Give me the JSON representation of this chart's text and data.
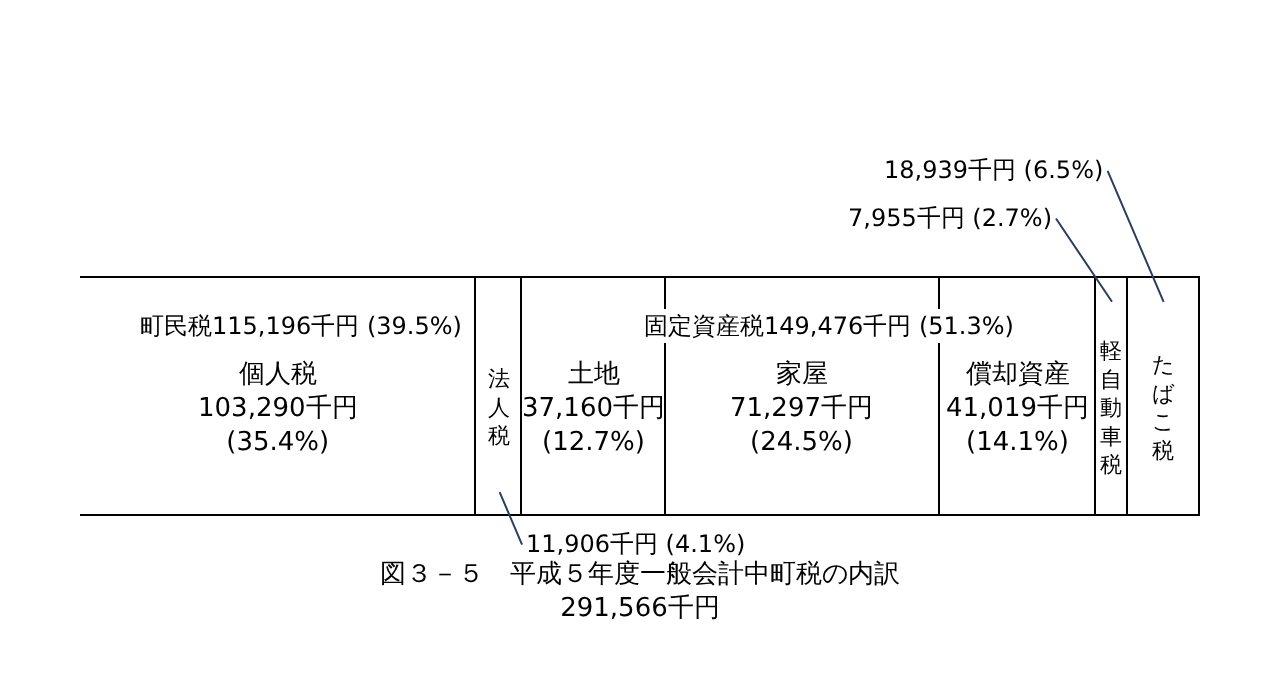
{
  "chart_data": {
    "type": "bar",
    "orientation": "horizontal",
    "stacked": true,
    "title": "図３－５　平成５年度一般会計中町税の内訳",
    "subtitle": "291,566千円",
    "categories": [
      null
    ],
    "series": [
      {
        "name": "個人税",
        "color": "#ffffff",
        "values": [
          103290
        ],
        "value_labels": [
          "103,290千円 (35.4%)"
        ]
      },
      {
        "name": "法人税",
        "color": "#ffffff",
        "values": [
          11906
        ],
        "value_labels": [
          "11,906千円 (4.1%)"
        ]
      },
      {
        "name": "土地",
        "color": "#ffffff",
        "values": [
          37160
        ],
        "value_labels": [
          "37,160千円 (12.7%)"
        ]
      },
      {
        "name": "家屋",
        "color": "#ffffff",
        "values": [
          71297
        ],
        "value_labels": [
          "71,297千円 (24.5%)"
        ]
      },
      {
        "name": "償却資産",
        "color": "#ffffff",
        "values": [
          41019
        ],
        "value_labels": [
          "41,019千円 (14.1%)"
        ]
      },
      {
        "name": "軽自動車税",
        "color": "#ffffff",
        "values": [
          7955
        ],
        "value_labels": [
          "7,955千円 (2.7%)"
        ]
      },
      {
        "name": "たばこ税",
        "color": "#ffffff",
        "values": [
          18939
        ],
        "value_labels": [
          "18,939千円 (6.5%)"
        ]
      }
    ],
    "annotations": [
      "町民税115,196千円 (39.5%)",
      "固定資産税149,476千円 (51.3%)"
    ]
  }
}
